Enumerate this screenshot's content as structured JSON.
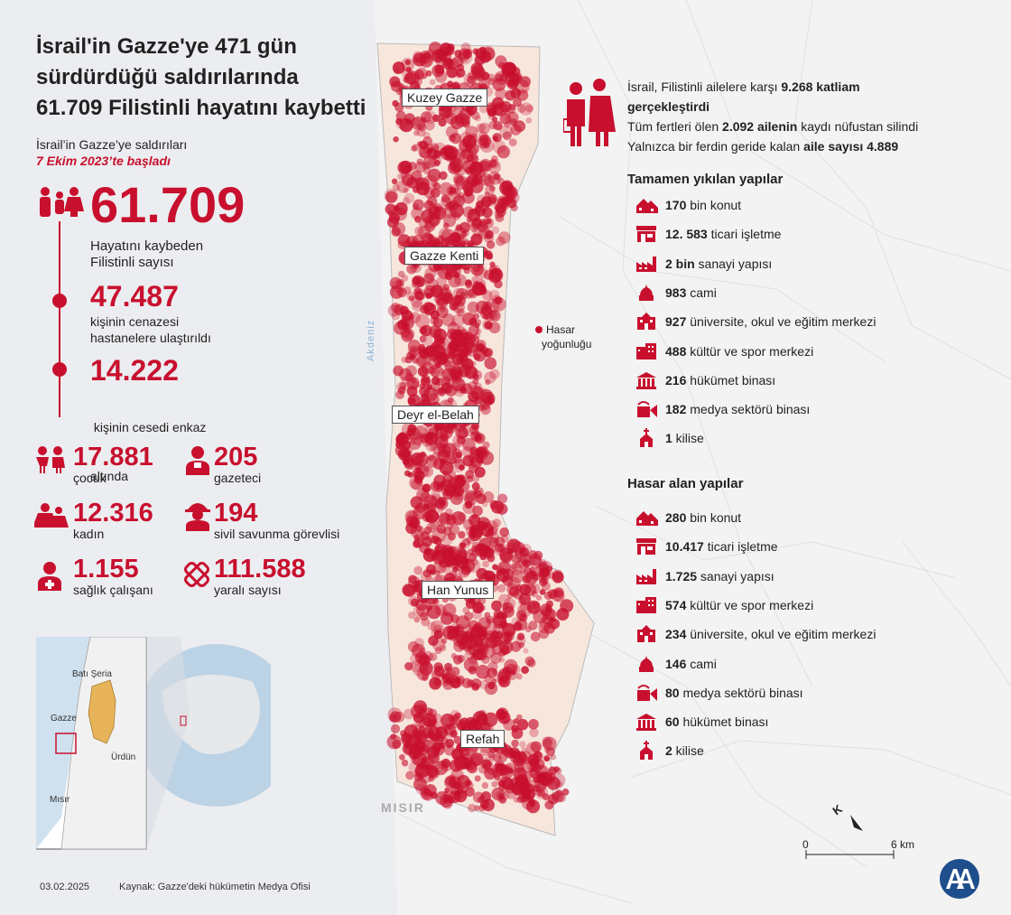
{
  "title": [
    "İsrail'in Gazze'ye 471 gün",
    "sürdürdüğü saldırılarında",
    "61.709 Filistinli hayatını kaybetti"
  ],
  "start_note": {
    "line1": "İsrail’in Gazze’ye saldırıları",
    "line2": "7 Ekim 2023’te başladı"
  },
  "main_stats": [
    {
      "value": "61.709",
      "label1": "Hayatını kaybeden",
      "label2": "Filistinli sayısı",
      "icon": "family-icon"
    },
    {
      "value": "47.487",
      "label1": "kişinin cenazesi",
      "label2": "hastanelere ulaştırıldı"
    },
    {
      "value": "14.222",
      "label1": " kişinin cesedi enkaz",
      "label2": "altında"
    }
  ],
  "small_stats": [
    {
      "value": "17.881",
      "label": "çocuk",
      "icon": "children-icon"
    },
    {
      "value": "205",
      "label": "gazeteci",
      "icon": "journalist-icon"
    },
    {
      "value": "12.316",
      "label": "kadın",
      "icon": "women-icon"
    },
    {
      "value": "194",
      "label": "sivil savunma görevlisi",
      "icon": "firefighter-icon"
    },
    {
      "value": "1.155",
      "label": "sağlık çalışanı",
      "icon": "health-worker-icon"
    },
    {
      "value": "111.588",
      "label": "yaralı sayısı",
      "icon": "bandage-icon"
    }
  ],
  "inset_map": {
    "west_bank": "Batı Şeria",
    "gaza": "Gazze",
    "jordan": "Ürdün",
    "egypt": "Mısır"
  },
  "map": {
    "cities": [
      "Kuzey Gazze",
      "Gazze Kenti",
      "Deyr el-Belah",
      "Han Yunus",
      "Refah"
    ],
    "sea": "Akdeniz",
    "country": "MISIR",
    "legend": {
      "line1": "Hasar",
      "line2": "yoğunluğu"
    },
    "scale": {
      "start": "0",
      "end": "6 km"
    },
    "north": "K"
  },
  "families": {
    "l1_pre": "İsrail, Filistinli ailelere karşı ",
    "l1_bold": "9.268 katliam",
    "l2_bold": "gerçekleştirdi",
    "l3_pre": "Tüm fertleri ölen ",
    "l3_bold": "2.092 ailenin",
    "l3_post": " kaydı nüfustan silindi",
    "l4_pre": "Yalnızca bir ferdin geride kalan ",
    "l4_bold": "aile sayısı 4.889"
  },
  "destroyed": {
    "title": "Tamamen yıkılan yapılar",
    "items": [
      {
        "value": "170",
        "label": " bin konut",
        "icon": "houses-icon"
      },
      {
        "value": "12. 583",
        "label": " ticari işletme",
        "icon": "shop-icon"
      },
      {
        "value": "2 bin",
        "label": " sanayi yapısı",
        "icon": "factory-icon"
      },
      {
        "value": "983",
        "label": " cami",
        "icon": "mosque-icon"
      },
      {
        "value": "927",
        "label": " üniversite, okul ve eğitim merkezi",
        "icon": "school-icon"
      },
      {
        "value": "488",
        "label": " kültür ve spor merkezi",
        "icon": "culture-icon"
      },
      {
        "value": "216",
        "label": " hükümet binası",
        "icon": "government-icon"
      },
      {
        "value": "182",
        "label": " medya sektörü binası",
        "icon": "media-icon"
      },
      {
        "value": "1",
        "label": " kilise",
        "icon": "church-icon"
      }
    ]
  },
  "damaged": {
    "title": "Hasar alan yapılar",
    "items": [
      {
        "value": "280",
        "label": " bin konut",
        "icon": "houses-icon"
      },
      {
        "value": "10.417",
        "label": " ticari işletme",
        "icon": "shop-icon"
      },
      {
        "value": "1.725",
        "label": " sanayi yapısı",
        "icon": "factory-icon"
      },
      {
        "value": "574",
        "label": " kültür ve spor merkezi",
        "icon": "culture-icon"
      },
      {
        "value": "234",
        "label": " üniversite, okul ve eğitim merkezi",
        "icon": "school-icon"
      },
      {
        "value": "146",
        "label": " cami",
        "icon": "mosque-icon"
      },
      {
        "value": "80",
        "label": " medya sektörü binası",
        "icon": "media-icon"
      },
      {
        "value": "60",
        "label": " hükümet binası",
        "icon": "government-icon"
      },
      {
        "value": "2",
        "label": " kilise",
        "icon": "church-icon"
      }
    ]
  },
  "footer": {
    "date": "03.02.2025",
    "source": "Kaynak: Gazze'deki hükümetin Medya Ofisi",
    "logo": "AA"
  },
  "colors": {
    "accent": "#c8102e",
    "panel": "#ecedf0",
    "strip": "#f7e6dc"
  }
}
